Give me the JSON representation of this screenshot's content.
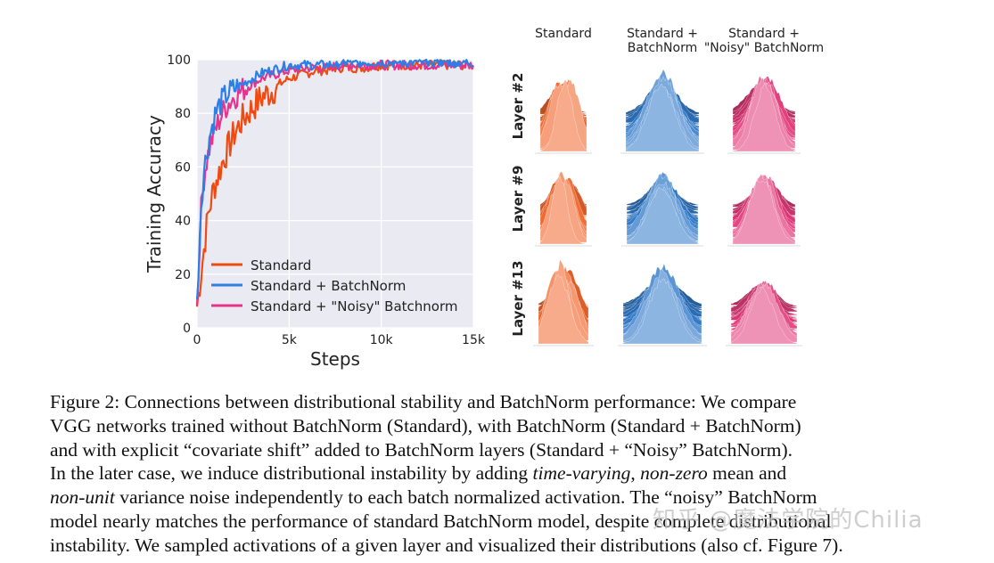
{
  "chart_data": {
    "type": "line",
    "xlabel": "Steps",
    "ylabel": "Training Accuracy",
    "xlim": [
      0,
      15000
    ],
    "ylim": [
      0,
      100
    ],
    "x_ticks": [
      "0",
      "5k",
      "10k",
      "15k"
    ],
    "y_ticks": [
      "0",
      "20",
      "40",
      "60",
      "80",
      "100"
    ],
    "legend_position": "bottom-left",
    "series": [
      {
        "name": "Standard",
        "color": "#ee4a12",
        "x": [
          0,
          300,
          600,
          900,
          1200,
          1500,
          2000,
          2500,
          3000,
          3500,
          4000,
          4500,
          5000,
          5500,
          6000,
          6500,
          7000,
          7500,
          8000,
          9000,
          10000,
          11000,
          12000,
          13000,
          14000,
          15000
        ],
        "y": [
          8,
          25,
          42,
          52,
          58,
          64,
          72,
          78,
          82,
          86,
          88,
          91,
          93,
          94,
          95,
          96,
          96,
          97,
          97,
          97,
          98,
          98,
          98,
          98,
          98,
          98
        ]
      },
      {
        "name": "Standard + BatchNorm",
        "color": "#2d7fe6",
        "x": [
          0,
          200,
          400,
          700,
          1000,
          1300,
          1600,
          2000,
          2500,
          3000,
          3500,
          4000,
          4500,
          5000,
          6000,
          7000,
          8000,
          9000,
          10000,
          11000,
          12000,
          13000,
          14000,
          15000
        ],
        "y": [
          8,
          45,
          60,
          72,
          80,
          84,
          87,
          89,
          91,
          93,
          95,
          96,
          97,
          98,
          98,
          98,
          99,
          99,
          99,
          99,
          99,
          99,
          99,
          99
        ]
      },
      {
        "name": "Standard + \"Noisy\" Batchnorm",
        "color": "#e8338c",
        "x": [
          0,
          200,
          400,
          700,
          1000,
          1300,
          1600,
          2000,
          2500,
          3000,
          3500,
          4000,
          4500,
          5000,
          6000,
          7000,
          8000,
          9000,
          10000,
          11000,
          12000,
          13000,
          14000,
          15000
        ],
        "y": [
          8,
          42,
          58,
          68,
          74,
          79,
          83,
          86,
          89,
          91,
          93,
          94,
          95,
          96,
          97,
          97,
          98,
          98,
          98,
          98,
          98,
          98,
          98,
          98
        ]
      }
    ]
  },
  "grid": {
    "col_labels": [
      "Standard",
      "Standard +\nBatchNorm",
      "Standard +\n\"Noisy\" BatchNorm"
    ],
    "row_labels": [
      "Layer #2",
      "Layer #9",
      "Layer #13"
    ],
    "col_colors": [
      "#f0662c",
      "#2f78c8",
      "#e23a7a"
    ]
  },
  "caption": {
    "lines": [
      [
        {
          "t": "Figure 2: Connections between distributional stability and BatchNorm performance: We compare"
        }
      ],
      [
        {
          "t": "VGG networks trained without BatchNorm (Standard), with BatchNorm (Standard + BatchNorm)"
        }
      ],
      [
        {
          "t": "and with explicit “covariate shift” added to BatchNorm layers (Standard + “Noisy” BatchNorm)."
        }
      ],
      [
        {
          "t": "In the later case, we induce distributional instability by adding "
        },
        {
          "t": "time-varying",
          "i": true
        },
        {
          "t": ", "
        },
        {
          "t": "non-zero",
          "i": true
        },
        {
          "t": " mean and"
        }
      ],
      [
        {
          "t": "non-unit",
          "i": true
        },
        {
          "t": " variance noise independently to each batch normalized activation. The “noisy” BatchNorm"
        }
      ],
      [
        {
          "t": "model nearly matches the performance of standard BatchNorm model, despite complete distributional"
        }
      ],
      [
        {
          "t": "instability. We sampled activations of a given layer and visualized their distributions (also cf. Figure 7)."
        }
      ]
    ]
  },
  "watermark": "知乎 @魔法学院的Chilia"
}
